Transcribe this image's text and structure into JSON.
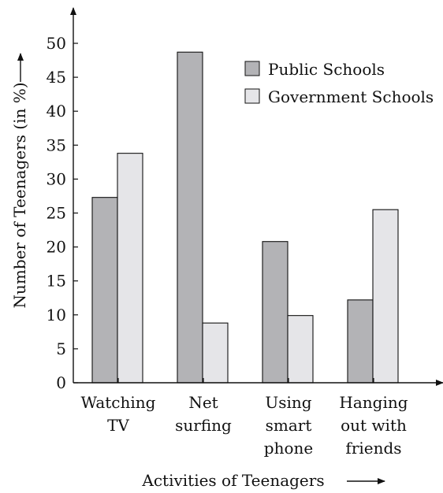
{
  "chart_data": {
    "type": "bar",
    "categories": [
      [
        "Watching",
        "TV"
      ],
      [
        "Net",
        "surfing"
      ],
      [
        "Using",
        "smart",
        "phone"
      ],
      [
        "Hanging",
        "out with",
        "friends"
      ]
    ],
    "series": [
      {
        "name": "Public Schools",
        "values": [
          27.3,
          48.7,
          20.8,
          12.2
        ],
        "color": "#b3b3b6"
      },
      {
        "name": "Government Schools",
        "values": [
          33.8,
          8.8,
          9.9,
          25.5
        ],
        "color": "#e5e5e8"
      }
    ],
    "ylabel": "Number of Teenagers (in %)",
    "xlabel": "Activities of Teenagers",
    "ylim": [
      0,
      50
    ],
    "yticks": [
      0,
      5,
      10,
      15,
      20,
      25,
      30,
      35,
      40,
      45,
      50
    ],
    "grid": false,
    "legend": "top-right"
  }
}
